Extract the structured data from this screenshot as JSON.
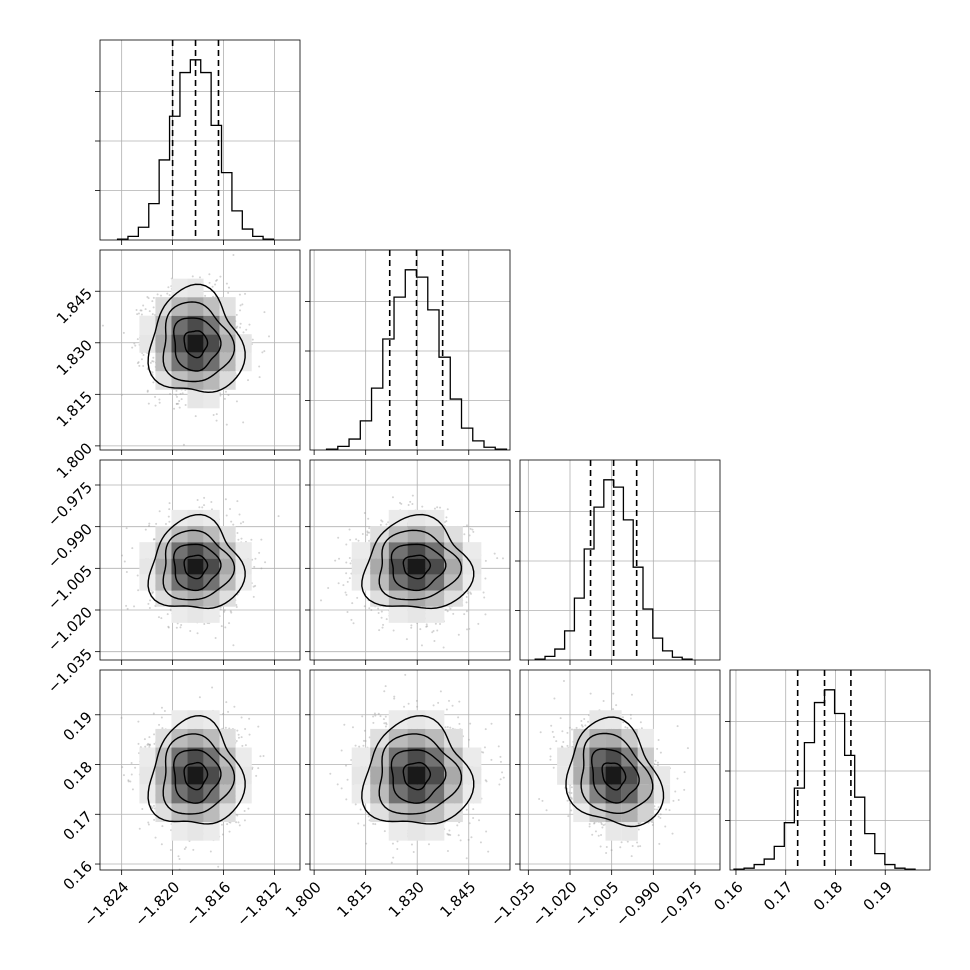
{
  "chart_data": {
    "type": "corner",
    "grid": true,
    "parameters": [
      {
        "ticks": [
          -1.824,
          -1.82,
          -1.816,
          -1.812
        ],
        "tick_labels": [
          "−1.824",
          "−1.820",
          "−1.816",
          "−1.812"
        ],
        "range": [
          -1.8257,
          -1.81
        ],
        "quantiles": [
          -1.82,
          -1.8182,
          -1.8164
        ]
      },
      {
        "ticks": [
          1.8,
          1.815,
          1.83,
          1.845
        ],
        "tick_labels": [
          "1.800",
          "1.815",
          "1.830",
          "1.845"
        ],
        "range": [
          1.7988,
          1.857
        ],
        "quantiles": [
          1.822,
          1.8298,
          1.8374
        ]
      },
      {
        "ticks": [
          -1.035,
          -1.02,
          -1.005,
          -0.99,
          -0.975
        ],
        "tick_labels": [
          "−1.035",
          "−1.020",
          "−1.005",
          "−0.990",
          "−0.975"
        ],
        "range": [
          -1.038,
          -0.966
        ],
        "quantiles": [
          -1.0126,
          -1.0043,
          -0.996
        ]
      },
      {
        "ticks": [
          0.16,
          0.17,
          0.18,
          0.19
        ],
        "tick_labels": [
          "0.16",
          "0.17",
          "0.18",
          "0.19"
        ],
        "range": [
          0.1588,
          0.199
        ],
        "quantiles": [
          0.1724,
          0.1778,
          0.1831
        ]
      }
    ],
    "histograms": [
      [
        0.005,
        0.02,
        0.07,
        0.2,
        0.44,
        0.68,
        0.92,
        0.99,
        0.92,
        0.63,
        0.37,
        0.16,
        0.06,
        0.02,
        0.005
      ],
      [
        0.005,
        0.02,
        0.06,
        0.16,
        0.34,
        0.61,
        0.84,
        0.99,
        0.95,
        0.77,
        0.51,
        0.28,
        0.12,
        0.05,
        0.015,
        0.005
      ],
      [
        0.005,
        0.02,
        0.06,
        0.16,
        0.34,
        0.61,
        0.84,
        0.99,
        0.95,
        0.77,
        0.51,
        0.28,
        0.12,
        0.05,
        0.015,
        0.005
      ],
      [
        0.005,
        0.01,
        0.03,
        0.06,
        0.13,
        0.26,
        0.45,
        0.7,
        0.92,
        0.99,
        0.86,
        0.63,
        0.4,
        0.2,
        0.09,
        0.03,
        0.01,
        0.005
      ]
    ],
    "correlations": [
      {
        "row": 1,
        "col": 0,
        "rho": -0.05
      },
      {
        "row": 2,
        "col": 0,
        "rho": 0.0
      },
      {
        "row": 2,
        "col": 1,
        "rho": 0.0
      },
      {
        "row": 3,
        "col": 0,
        "rho": 0.0
      },
      {
        "row": 3,
        "col": 1,
        "rho": 0.0
      },
      {
        "row": 3,
        "col": 2,
        "rho": -0.2
      }
    ],
    "colors": {
      "line": "#000000",
      "points": "#9e9e9e",
      "grid": "#b0b0b0"
    }
  }
}
